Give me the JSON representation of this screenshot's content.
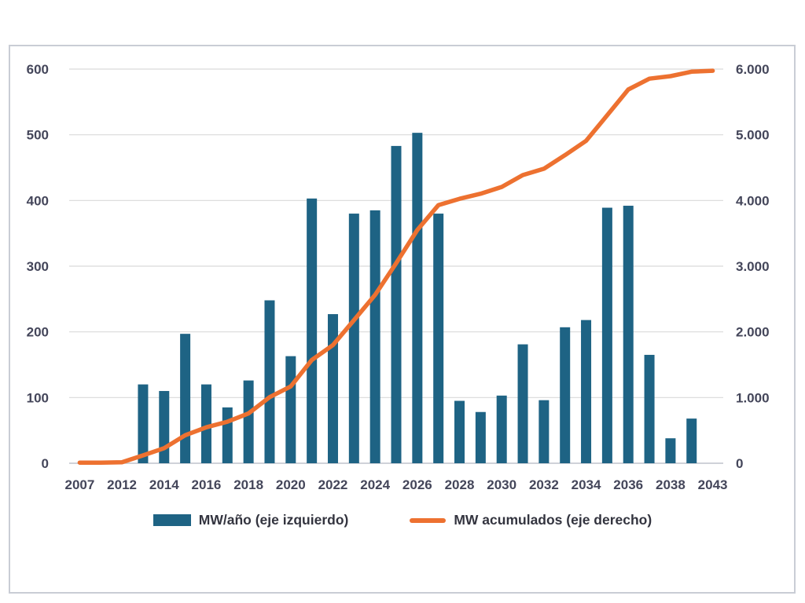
{
  "chart_data": {
    "type": "bar+line",
    "x_tick_labels": [
      "2007",
      "2012",
      "2014",
      "2016",
      "2018",
      "2020",
      "2022",
      "2024",
      "2026",
      "2028",
      "2030",
      "2032",
      "2034",
      "2036",
      "2038",
      "2043"
    ],
    "x_tick_slots": [
      0,
      2,
      4,
      6,
      8,
      10,
      12,
      14,
      16,
      18,
      20,
      22,
      24,
      26,
      28,
      30
    ],
    "x_slot_years": [
      "2007",
      "",
      "2012",
      "2013",
      "2014",
      "2015",
      "2016",
      "2017",
      "2018",
      "2019",
      "2020",
      "2021",
      "2022",
      "2023",
      "2024",
      "2025",
      "2026",
      "2027",
      "2028",
      "2029",
      "2030",
      "2031",
      "2032",
      "2033",
      "2034",
      "2035",
      "2036",
      "2037",
      "2038",
      "",
      "2043"
    ],
    "series": [
      {
        "name": "MW/año (eje izquierdo)",
        "type": "bar",
        "axis": "left",
        "values": [
          0,
          0,
          0,
          120,
          110,
          197,
          120,
          85,
          126,
          248,
          163,
          403,
          227,
          380,
          385,
          483,
          503,
          380,
          95,
          78,
          103,
          181,
          96,
          207,
          218,
          389,
          392,
          165,
          38,
          68,
          0
        ]
      },
      {
        "name": "MW acumulados (eje derecho)",
        "type": "line",
        "axis": "right",
        "values": [
          10,
          10,
          15,
          120,
          230,
          427,
          547,
          632,
          758,
          1006,
          1169,
          1572,
          1799,
          2179,
          2564,
          3047,
          3550,
          3930,
          4025,
          4103,
          4206,
          4387,
          4483,
          4690,
          4908,
          5297,
          5689,
          5854,
          5892,
          5960,
          5975
        ]
      }
    ],
    "left_axis": {
      "tick_labels": [
        "0",
        "100",
        "200",
        "300",
        "400",
        "500",
        "600"
      ],
      "tick_values": [
        0,
        100,
        200,
        300,
        400,
        500,
        600
      ],
      "min": 0,
      "max": 600
    },
    "right_axis": {
      "tick_labels": [
        "0",
        "1.000",
        "2.000",
        "3.000",
        "4.000",
        "5.000",
        "6.000"
      ],
      "tick_values": [
        0,
        1000,
        2000,
        3000,
        4000,
        5000,
        6000
      ],
      "min": 0,
      "max": 6000
    },
    "grid": true,
    "legend_position": "bottom"
  },
  "legend": {
    "bar_label": "MW/año (eje izquierdo)",
    "line_label": "MW acumulados (eje derecho)"
  },
  "colors": {
    "bar": "#1e6384",
    "line": "#ed7130",
    "gridline": "#d9d9d9",
    "axis_line": "#bfc3cb",
    "tick_text": "#44465a",
    "frame_border": "#c9cdd5"
  }
}
